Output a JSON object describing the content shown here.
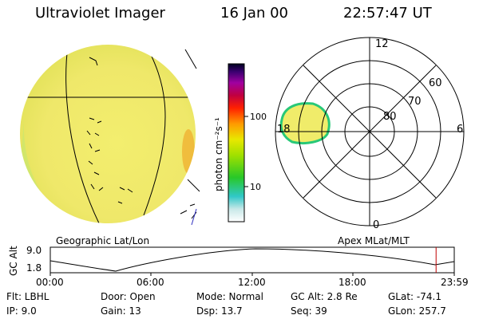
{
  "header": {
    "instrument": "Ultraviolet Imager",
    "date": "16 Jan 00",
    "time": "22:57:47 UT"
  },
  "colorbar": {
    "label": "photon cm⁻²s⁻¹",
    "tick_top": "100",
    "tick_bottom": "10"
  },
  "geo_panel": {
    "label": "Geographic Lat/Lon"
  },
  "polar_panel": {
    "label": "Apex MLat/MLT",
    "mlt_top": "12",
    "mlt_left": "18",
    "mlt_right": "6",
    "mlt_bottom": "0",
    "lat_60": "60",
    "lat_70": "70",
    "lat_80": "80"
  },
  "timeline": {
    "axis_label": "GC Alt",
    "y_top": "9.0",
    "y_bottom": "1.8",
    "ticks": [
      "00:00",
      "06:00",
      "12:00",
      "18:00",
      "23:59"
    ],
    "current_fraction": 0.955
  },
  "status": {
    "filter": "Flt: LBHL",
    "ip": "IP: 9.0",
    "door": "Door: Open",
    "gain": "Gain: 13",
    "mode": "Mode: Normal",
    "dsp": "Dsp: 13.7",
    "gc_alt": "GC Alt: 2.8 Re",
    "seq": "Seq: 39",
    "glat": "GLat: -74.1",
    "glon": "GLon: 257.7"
  }
}
